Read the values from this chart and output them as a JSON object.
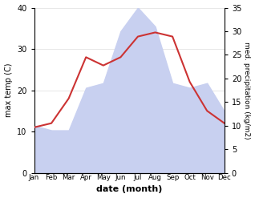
{
  "months": [
    "Jan",
    "Feb",
    "Mar",
    "Apr",
    "May",
    "Jun",
    "Jul",
    "Aug",
    "Sep",
    "Oct",
    "Nov",
    "Dec"
  ],
  "max_temp": [
    11,
    12,
    18,
    28,
    26,
    28,
    33,
    34,
    33,
    22,
    15,
    12
  ],
  "precipitation_kg": [
    10,
    9,
    9,
    18,
    19,
    30,
    35,
    31,
    19,
    18,
    19,
    13
  ],
  "temp_color": "#cc3333",
  "fill_color": "#c8d0f0",
  "ylabel_left": "max temp (C)",
  "ylabel_right": "med. precipitation (kg/m2)",
  "xlabel": "date (month)",
  "ylim_left": [
    0,
    40
  ],
  "ylim_right": [
    0,
    35
  ],
  "yticks_left": [
    0,
    10,
    20,
    30,
    40
  ],
  "yticks_right": [
    0,
    5,
    10,
    15,
    20,
    25,
    30,
    35
  ],
  "background_color": "#ffffff"
}
